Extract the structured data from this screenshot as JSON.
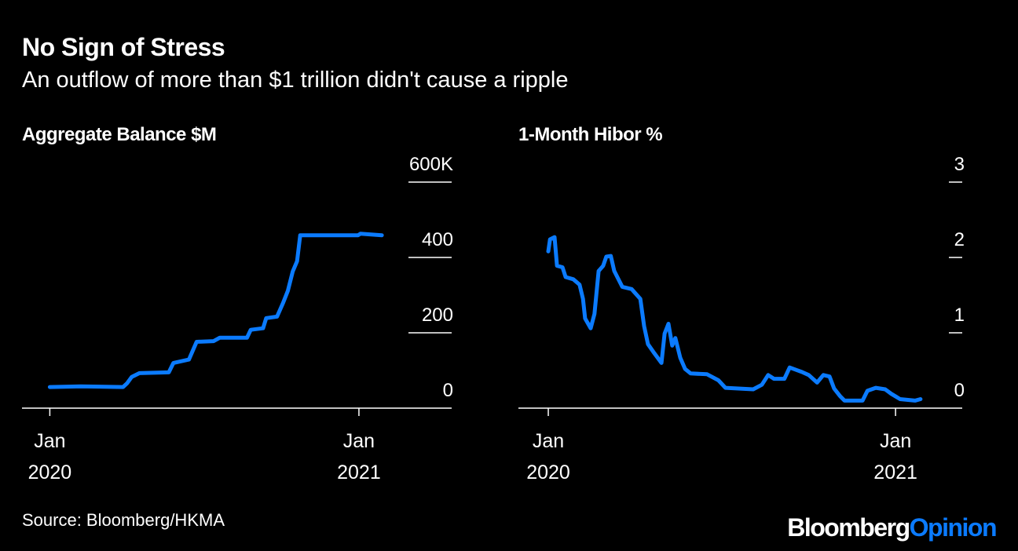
{
  "header": {
    "title": "No Sign of Stress",
    "subtitle": "An outflow of more than $1 trillion didn't cause a ripple"
  },
  "footer": {
    "source": "Source: Bloomberg/HKMA",
    "brand": [
      "Bloomberg",
      "Opinion"
    ]
  },
  "chart_data": [
    {
      "type": "line",
      "title": "Aggregate Balance $M",
      "color": "#0b7bff",
      "x": [
        2020.0,
        2020.1,
        2020.237,
        2020.25,
        2020.265,
        2020.29,
        2020.385,
        2020.4,
        2020.45,
        2020.475,
        2020.53,
        2020.55,
        2020.638,
        2020.65,
        2020.69,
        2020.7,
        2020.735,
        2020.755,
        2020.77,
        2020.786,
        2020.8,
        2020.81,
        2020.997,
        2021.005,
        2021.074
      ],
      "values": [
        56,
        58,
        56,
        66,
        83,
        93,
        95,
        120,
        129,
        176,
        178,
        187,
        187,
        208,
        212,
        239,
        243,
        280,
        311,
        363,
        390,
        459,
        459,
        463,
        459
      ],
      "xlim": [
        2019.91,
        2021.3
      ],
      "xticks": [
        {
          "value": 2020,
          "label": "Jan 2020"
        },
        {
          "value": 2021,
          "label": "Jan 2021"
        }
      ],
      "ylim": [
        0,
        600
      ],
      "yticks": [
        0,
        200,
        400,
        {
          "value": 600,
          "label": "600K"
        }
      ],
      "grid": true
    },
    {
      "type": "line",
      "title": "1-Month Hibor %",
      "color": "#0b7bff",
      "x": [
        2020.0,
        2020.005,
        2020.018,
        2020.025,
        2020.041,
        2020.05,
        2020.072,
        2020.09,
        2020.1,
        2020.106,
        2020.122,
        2020.133,
        2020.145,
        2020.158,
        2020.167,
        2020.18,
        2020.19,
        2020.213,
        2020.24,
        2020.265,
        2020.276,
        2020.287,
        2020.305,
        2020.326,
        2020.335,
        2020.346,
        2020.357,
        2020.366,
        2020.38,
        2020.394,
        2020.41,
        2020.457,
        2020.49,
        2020.51,
        2020.59,
        2020.615,
        2020.633,
        2020.65,
        2020.68,
        2020.695,
        2020.73,
        2020.75,
        2020.774,
        2020.792,
        2020.81,
        2020.823,
        2020.84,
        2020.853,
        2020.905,
        2020.919,
        2020.943,
        2020.97,
        2020.988,
        2021.013,
        2021.056,
        2021.072
      ],
      "values": [
        2.08,
        2.24,
        2.27,
        1.89,
        1.87,
        1.74,
        1.71,
        1.64,
        1.45,
        1.19,
        1.06,
        1.25,
        1.82,
        1.89,
        2.01,
        2.02,
        1.82,
        1.61,
        1.58,
        1.45,
        1.09,
        0.85,
        0.73,
        0.6,
        0.99,
        1.12,
        0.83,
        0.93,
        0.67,
        0.52,
        0.46,
        0.45,
        0.37,
        0.27,
        0.25,
        0.31,
        0.44,
        0.39,
        0.39,
        0.54,
        0.48,
        0.44,
        0.34,
        0.44,
        0.42,
        0.26,
        0.16,
        0.1,
        0.1,
        0.23,
        0.27,
        0.25,
        0.19,
        0.12,
        0.1,
        0.12
      ],
      "xlim": [
        2019.914,
        2021.192
      ],
      "xticks": [
        {
          "value": 2020,
          "label": "Jan 2020"
        },
        {
          "value": 2021,
          "label": "Jan 2021"
        }
      ],
      "ylim": [
        0,
        3
      ],
      "yticks": [
        0,
        1,
        2,
        3
      ],
      "grid": true
    }
  ]
}
